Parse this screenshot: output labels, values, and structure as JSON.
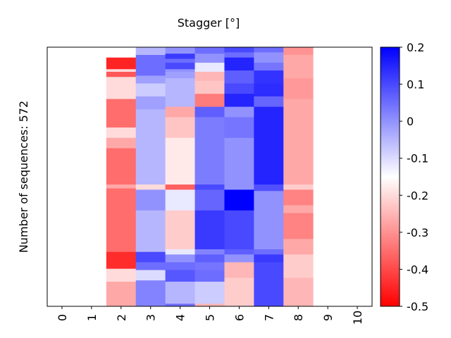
{
  "chart_data": {
    "type": "heatmap",
    "title": "Stagger [°]",
    "xlabel": "",
    "ylabel": "Number of sequences: 572",
    "x_ticks": [
      "0",
      "1",
      "2",
      "3",
      "4",
      "5",
      "6",
      "7",
      "8",
      "9",
      "10"
    ],
    "total_sequences": 572,
    "colormap": "bwr_r",
    "color_range": [
      -0.5,
      0.2
    ],
    "colorbar_ticks": [
      "0.2",
      "0.1",
      "0",
      "-0.1",
      "-0.2",
      "-0.3",
      "-0.4",
      "-0.5"
    ],
    "colorbar_tick_values": [
      0.2,
      0.1,
      0.0,
      -0.1,
      -0.2,
      -0.3,
      -0.4,
      -0.5
    ],
    "columns": [
      {
        "index": 2,
        "segments": [
          {
            "from": 0.04,
            "to": 0.085,
            "value": -0.45
          },
          {
            "from": 0.085,
            "to": 0.095,
            "value": -0.2
          },
          {
            "from": 0.095,
            "to": 0.115,
            "value": -0.38
          },
          {
            "from": 0.115,
            "to": 0.2,
            "value": -0.2
          },
          {
            "from": 0.2,
            "to": 0.31,
            "value": -0.35
          },
          {
            "from": 0.31,
            "to": 0.35,
            "value": -0.2
          },
          {
            "from": 0.35,
            "to": 0.39,
            "value": -0.27
          },
          {
            "from": 0.39,
            "to": 0.53,
            "value": -0.35
          },
          {
            "from": 0.53,
            "to": 0.545,
            "value": -0.27
          },
          {
            "from": 0.545,
            "to": 0.79,
            "value": -0.35
          },
          {
            "from": 0.79,
            "to": 0.855,
            "value": -0.44
          },
          {
            "from": 0.855,
            "to": 0.905,
            "value": -0.2
          },
          {
            "from": 0.905,
            "to": 1.0,
            "value": -0.27
          }
        ]
      },
      {
        "index": 3,
        "segments": [
          {
            "from": 0.0,
            "to": 0.03,
            "value": -0.05
          },
          {
            "from": 0.03,
            "to": 0.11,
            "value": 0.05
          },
          {
            "from": 0.11,
            "to": 0.14,
            "value": -0.02
          },
          {
            "from": 0.14,
            "to": 0.19,
            "value": -0.08
          },
          {
            "from": 0.19,
            "to": 0.24,
            "value": -0.02
          },
          {
            "from": 0.24,
            "to": 0.46,
            "value": -0.05
          },
          {
            "from": 0.46,
            "to": 0.53,
            "value": -0.05
          },
          {
            "from": 0.53,
            "to": 0.55,
            "value": -0.2
          },
          {
            "from": 0.55,
            "to": 0.63,
            "value": 0.0
          },
          {
            "from": 0.63,
            "to": 0.79,
            "value": -0.05
          },
          {
            "from": 0.79,
            "to": 0.83,
            "value": 0.1
          },
          {
            "from": 0.83,
            "to": 0.86,
            "value": 0.05
          },
          {
            "from": 0.86,
            "to": 0.9,
            "value": -0.1
          },
          {
            "from": 0.9,
            "to": 1.0,
            "value": 0.02
          }
        ]
      },
      {
        "index": 4,
        "segments": [
          {
            "from": 0.0,
            "to": 0.025,
            "value": 0.0
          },
          {
            "from": 0.025,
            "to": 0.045,
            "value": 0.12
          },
          {
            "from": 0.045,
            "to": 0.06,
            "value": 0.05
          },
          {
            "from": 0.06,
            "to": 0.085,
            "value": 0.1
          },
          {
            "from": 0.085,
            "to": 0.095,
            "value": 0.0
          },
          {
            "from": 0.095,
            "to": 0.12,
            "value": -0.02
          },
          {
            "from": 0.12,
            "to": 0.23,
            "value": -0.05
          },
          {
            "from": 0.23,
            "to": 0.27,
            "value": -0.27
          },
          {
            "from": 0.27,
            "to": 0.35,
            "value": -0.23
          },
          {
            "from": 0.35,
            "to": 0.53,
            "value": -0.18
          },
          {
            "from": 0.53,
            "to": 0.55,
            "value": -0.37
          },
          {
            "from": 0.55,
            "to": 0.63,
            "value": -0.12
          },
          {
            "from": 0.63,
            "to": 0.78,
            "value": -0.22
          },
          {
            "from": 0.78,
            "to": 0.8,
            "value": -0.12
          },
          {
            "from": 0.8,
            "to": 0.83,
            "value": 0.0
          },
          {
            "from": 0.83,
            "to": 0.86,
            "value": 0.05
          },
          {
            "from": 0.86,
            "to": 0.905,
            "value": 0.08
          },
          {
            "from": 0.905,
            "to": 0.99,
            "value": -0.05
          },
          {
            "from": 0.99,
            "to": 1.0,
            "value": 0.05
          }
        ]
      },
      {
        "index": 5,
        "segments": [
          {
            "from": 0.0,
            "to": 0.025,
            "value": 0.05
          },
          {
            "from": 0.025,
            "to": 0.06,
            "value": 0.0
          },
          {
            "from": 0.06,
            "to": 0.095,
            "value": -0.12
          },
          {
            "from": 0.095,
            "to": 0.13,
            "value": -0.25
          },
          {
            "from": 0.13,
            "to": 0.18,
            "value": -0.23
          },
          {
            "from": 0.18,
            "to": 0.23,
            "value": -0.33
          },
          {
            "from": 0.23,
            "to": 0.27,
            "value": 0.07
          },
          {
            "from": 0.27,
            "to": 0.53,
            "value": 0.03
          },
          {
            "from": 0.53,
            "to": 0.55,
            "value": 0.1
          },
          {
            "from": 0.55,
            "to": 0.63,
            "value": 0.06
          },
          {
            "from": 0.63,
            "to": 0.78,
            "value": 0.12
          },
          {
            "from": 0.78,
            "to": 0.8,
            "value": 0.02
          },
          {
            "from": 0.8,
            "to": 0.83,
            "value": 0.07
          },
          {
            "from": 0.83,
            "to": 0.86,
            "value": 0.04
          },
          {
            "from": 0.86,
            "to": 0.905,
            "value": 0.05
          },
          {
            "from": 0.905,
            "to": 0.99,
            "value": -0.08
          },
          {
            "from": 0.99,
            "to": 1.0,
            "value": -0.25
          }
        ]
      },
      {
        "index": 6,
        "segments": [
          {
            "from": 0.0,
            "to": 0.02,
            "value": 0.1
          },
          {
            "from": 0.02,
            "to": 0.04,
            "value": 0.05
          },
          {
            "from": 0.04,
            "to": 0.09,
            "value": 0.15
          },
          {
            "from": 0.09,
            "to": 0.14,
            "value": 0.07
          },
          {
            "from": 0.14,
            "to": 0.18,
            "value": 0.1
          },
          {
            "from": 0.18,
            "to": 0.23,
            "value": 0.15
          },
          {
            "from": 0.23,
            "to": 0.27,
            "value": 0.0
          },
          {
            "from": 0.27,
            "to": 0.35,
            "value": 0.04
          },
          {
            "from": 0.35,
            "to": 0.55,
            "value": 0.0
          },
          {
            "from": 0.55,
            "to": 0.63,
            "value": 0.2
          },
          {
            "from": 0.63,
            "to": 0.78,
            "value": 0.1
          },
          {
            "from": 0.78,
            "to": 0.8,
            "value": 0.07
          },
          {
            "from": 0.8,
            "to": 0.83,
            "value": 0.0
          },
          {
            "from": 0.83,
            "to": 0.89,
            "value": -0.25
          },
          {
            "from": 0.89,
            "to": 1.0,
            "value": -0.22
          }
        ]
      },
      {
        "index": 7,
        "segments": [
          {
            "from": 0.0,
            "to": 0.02,
            "value": 0.05
          },
          {
            "from": 0.02,
            "to": 0.06,
            "value": 0.0
          },
          {
            "from": 0.06,
            "to": 0.09,
            "value": 0.04
          },
          {
            "from": 0.09,
            "to": 0.14,
            "value": 0.13
          },
          {
            "from": 0.14,
            "to": 0.19,
            "value": 0.14
          },
          {
            "from": 0.19,
            "to": 0.23,
            "value": 0.06
          },
          {
            "from": 0.23,
            "to": 0.27,
            "value": 0.15
          },
          {
            "from": 0.27,
            "to": 0.53,
            "value": 0.15
          },
          {
            "from": 0.53,
            "to": 0.555,
            "value": 0.09
          },
          {
            "from": 0.555,
            "to": 0.78,
            "value": 0.0
          },
          {
            "from": 0.78,
            "to": 0.8,
            "value": 0.05
          },
          {
            "from": 0.8,
            "to": 0.83,
            "value": 0.12
          },
          {
            "from": 0.83,
            "to": 0.89,
            "value": 0.1
          },
          {
            "from": 0.89,
            "to": 1.0,
            "value": 0.1
          }
        ]
      },
      {
        "index": 8,
        "segments": [
          {
            "from": 0.0,
            "to": 0.03,
            "value": -0.3
          },
          {
            "from": 0.03,
            "to": 0.12,
            "value": -0.27
          },
          {
            "from": 0.12,
            "to": 0.2,
            "value": -0.29
          },
          {
            "from": 0.2,
            "to": 0.4,
            "value": -0.27
          },
          {
            "from": 0.4,
            "to": 0.53,
            "value": -0.27
          },
          {
            "from": 0.53,
            "to": 0.55,
            "value": -0.22
          },
          {
            "from": 0.55,
            "to": 0.61,
            "value": -0.32
          },
          {
            "from": 0.61,
            "to": 0.64,
            "value": -0.27
          },
          {
            "from": 0.64,
            "to": 0.74,
            "value": -0.32
          },
          {
            "from": 0.74,
            "to": 0.8,
            "value": -0.27
          },
          {
            "from": 0.8,
            "to": 0.89,
            "value": -0.22
          },
          {
            "from": 0.89,
            "to": 1.0,
            "value": -0.25
          }
        ]
      }
    ]
  }
}
